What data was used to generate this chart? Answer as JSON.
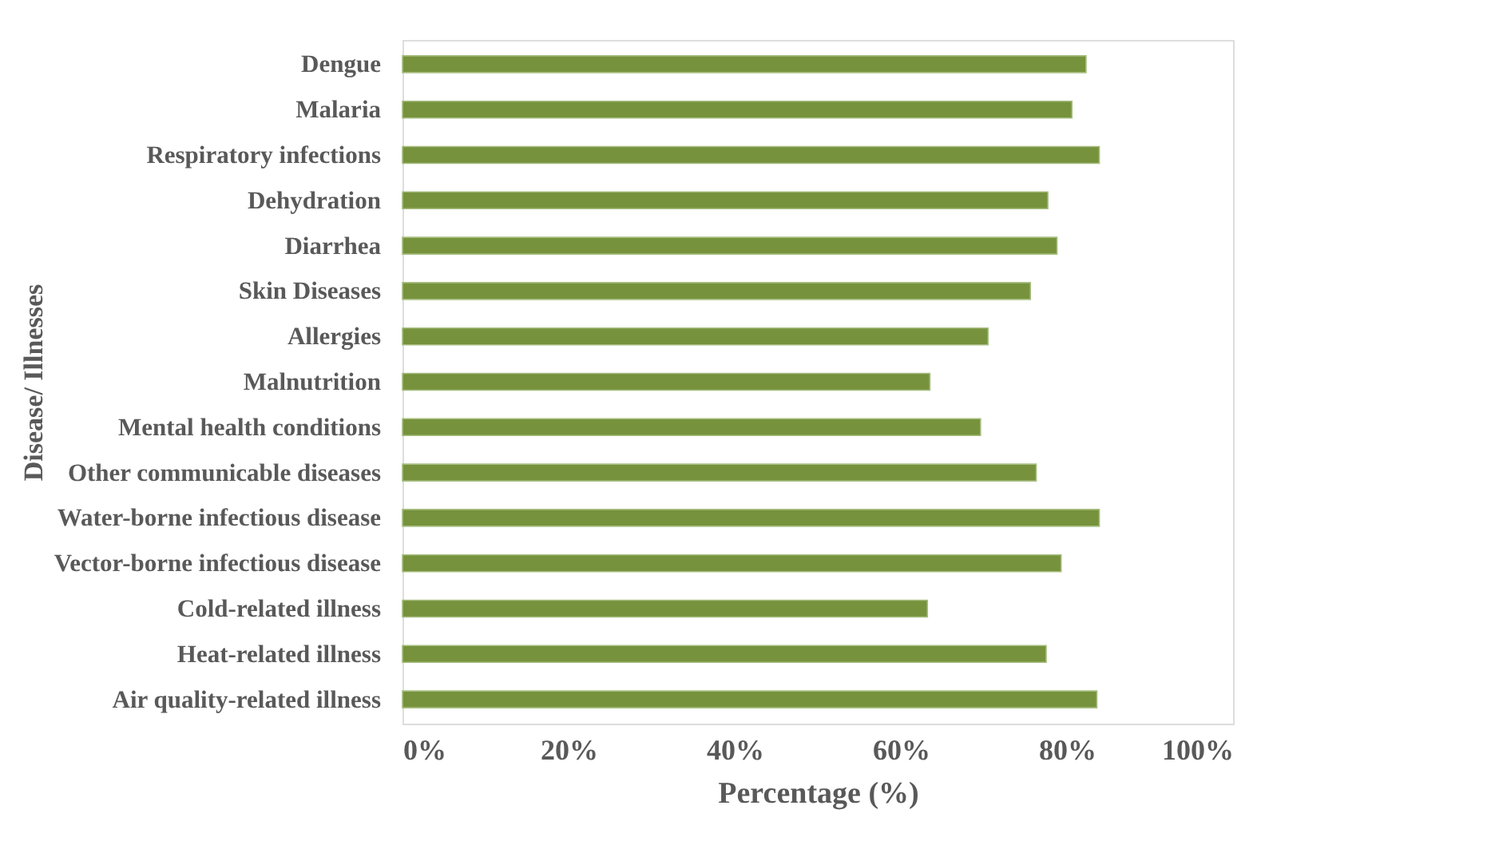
{
  "chart_data": {
    "type": "bar",
    "orientation": "horizontal",
    "xlabel": "Percentage (%)",
    "ylabel": "Disease/ Illnesses",
    "categories": [
      "Dengue",
      "Malaria",
      "Respiratory infections",
      "Dehydration",
      "Diarrhea",
      "Skin Diseases",
      "Allergies",
      "Malnutrition",
      "Mental health conditions",
      "Other communicable diseases",
      "Water-borne infectious disease",
      "Vector-borne infectious disease",
      "Cold-related illness",
      "Heat-related illness",
      "Air quality-related illness"
    ],
    "values": [
      82.3,
      80.6,
      83.9,
      77.7,
      78.8,
      75.6,
      70.5,
      63.5,
      69.6,
      76.3,
      83.9,
      79.3,
      63.2,
      77.5,
      83.6
    ],
    "color": "#76923c",
    "xlim": [
      0,
      100
    ],
    "xticks": [
      {
        "value": 0,
        "label": "0%"
      },
      {
        "value": 20,
        "label": "20%"
      },
      {
        "value": 40,
        "label": "40%"
      },
      {
        "value": 60,
        "label": "60%"
      },
      {
        "value": 80,
        "label": "80%"
      },
      {
        "value": 100,
        "label": "100%"
      }
    ],
    "grid": false
  }
}
